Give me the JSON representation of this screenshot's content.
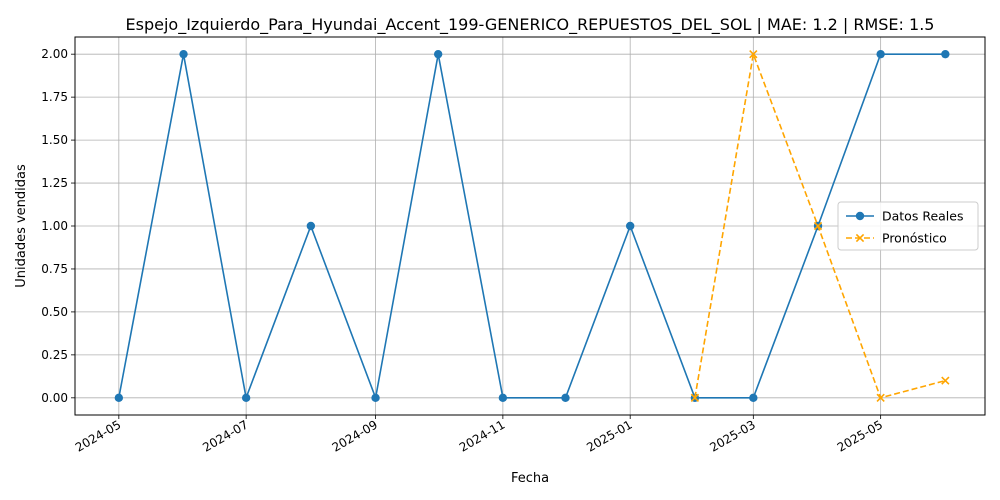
{
  "chart_data": {
    "type": "line",
    "title": "Espejo_Izquierdo_Para_Hyundai_Accent_199-GENERICO_REPUESTOS_DEL_SOL | MAE: 1.2 | RMSE: 1.5",
    "xlabel": "Fecha",
    "ylabel": "Unidades vendidas",
    "ylim": [
      -0.1,
      2.1
    ],
    "xlim": [
      "2024-04-10",
      "2025-06-20"
    ],
    "grid": true,
    "legend_position": "center-right",
    "x_ticks": [
      "2024-05",
      "2024-07",
      "2024-09",
      "2024-11",
      "2025-01",
      "2025-03",
      "2025-05"
    ],
    "y_ticks": [
      "0.00",
      "0.25",
      "0.50",
      "0.75",
      "1.00",
      "1.25",
      "1.50",
      "1.75",
      "2.00"
    ],
    "series": [
      {
        "name": "Datos Reales",
        "color": "#1f77b4",
        "style": "solid",
        "marker": "circle",
        "points": [
          {
            "x": "2024-05-01",
            "y": 0
          },
          {
            "x": "2024-06-01",
            "y": 2
          },
          {
            "x": "2024-07-01",
            "y": 0
          },
          {
            "x": "2024-08-01",
            "y": 1
          },
          {
            "x": "2024-09-01",
            "y": 0
          },
          {
            "x": "2024-10-01",
            "y": 2
          },
          {
            "x": "2024-11-01",
            "y": 0
          },
          {
            "x": "2024-12-01",
            "y": 0
          },
          {
            "x": "2025-01-01",
            "y": 1
          },
          {
            "x": "2025-02-01",
            "y": 0
          },
          {
            "x": "2025-03-01",
            "y": 0
          },
          {
            "x": "2025-04-01",
            "y": 1
          },
          {
            "x": "2025-05-01",
            "y": 2
          },
          {
            "x": "2025-06-01",
            "y": 2
          }
        ]
      },
      {
        "name": "Pronóstico",
        "color": "#ffa500",
        "style": "dashed",
        "marker": "x",
        "points": [
          {
            "x": "2025-02-01",
            "y": 0
          },
          {
            "x": "2025-03-01",
            "y": 2
          },
          {
            "x": "2025-04-01",
            "y": 1
          },
          {
            "x": "2025-05-01",
            "y": 0
          },
          {
            "x": "2025-06-01",
            "y": 0.1
          }
        ]
      }
    ]
  }
}
